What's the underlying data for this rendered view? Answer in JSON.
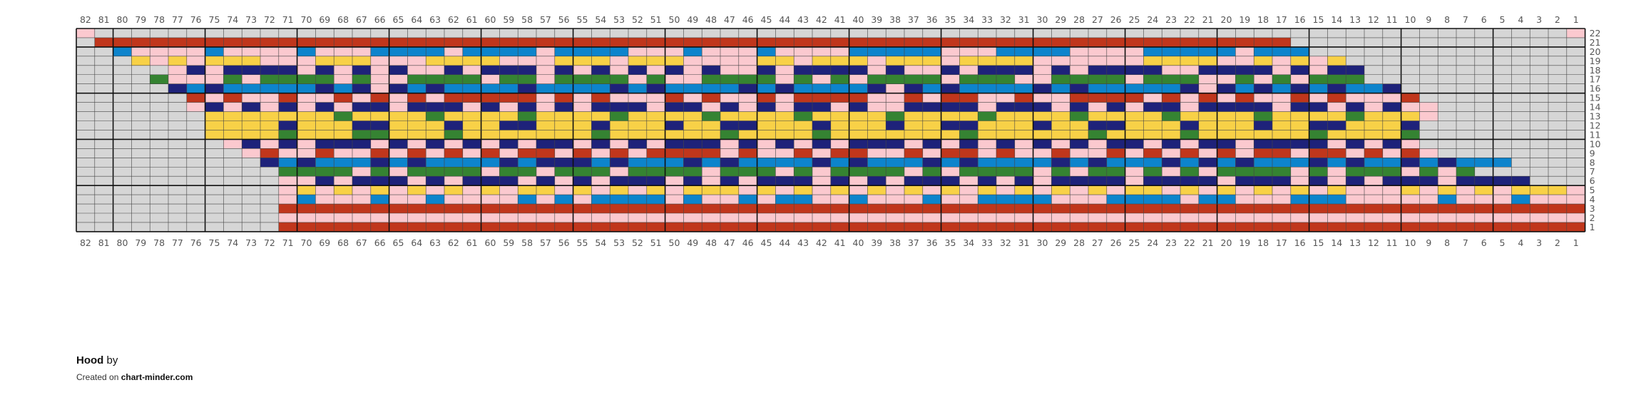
{
  "chart": {
    "columns": 82,
    "rows": 22,
    "column_numbers_descending": true,
    "major_grid_every": 5,
    "colors": {
      "empty": "#d6d6d6",
      "pink": "#fbc9cf",
      "red": "#c0361c",
      "navy": "#1e227a",
      "yellow": "#f8d147",
      "blue": "#0d84cc",
      "green": "#358332",
      "grid": "#444444",
      "major_grid": "#111111"
    },
    "legend_codes": {
      "N": "empty",
      "P": "pink",
      "R": "red",
      "D": "navy",
      "Y": "yellow",
      "B": "blue",
      "G": "green"
    },
    "rows_top_to_bottom": [
      "PNNNNNNNNNNNNNNNNNNNNNNNNNNNNNNNNNNNNNNNNNNNNNNNNNNNNNNNNNNNNNNNNNNNNNNNNNNNNNNNNP",
      "NRRRRRRRRRRRRRRRRRRRRRRRRRRRRRRRRRRRRRRRRRRRRRRRRRRRRRRRRRRRRRRRRRNNNNNNNNNNNNNNNN",
      "NNBPPPPBPPPPBPPPBBBBPBBBBPBBBBPPPBPPPBPPPPBBBBBPPPBBBBPPPPBBBBBPBBBNNNNNNNNNNNNNNN",
      "NNNYPYPYYYPPPYYYPPPYYYYPPPYYYPYYYPPPPYYPYYYPYYYPYYYYPPPPPPYYYYPPYPYPYNNNNNNNNNNNNN",
      "NNNNNPDPDDDDPDPDPDPPDPDDDPDPDPDPDPDPPDPDDDDPDPPDPDDDPDPDDDDPPDDDDPDPDDNNNNNNNNNNNN",
      "NNNNGPPPGPGGGGPGPPGGGGPGGPGGGGPGPPGGGGPGPGPGGGGPGGGPPGGGGPGGGPPGPGPGGGNNNNNNNNNNNN",
      "NNNNNDBDBBBBBDBDPDBDBBBBDBBBBDBDBBBBDBDBBBBDPDBDBBBBDBDBBBBBDPDBDBDBDBBDNNNNNNNNNN",
      "NNNNNNRPRPPRPPRPRPRPRRRRRPRPRPPPRPRPPRPRRRRPPRPRRPPRPPRRRRPRPRPRPPRPRPPPRNNNNNNNNN",
      "NNNNNNPDPDPDPDPDDPDDDPDPDPDPDDDPDDPDPDPDDPDPPDDDDPDDDPDPDPDDPDDDDPDDPDPDPPNNNNNNNN",
      "NNNNNNNYYYYYYYGYYYYGYYYYGYYYYGYYYYGYYYYGYYYYGYYYYGYYYYGYYYYGYYYYGYYYYGYYYPNNNNNNNN",
      "NNNNNNNYYYYDYYYDDYYYDYYDDYYYDYYYDYYDDYYYDYYYDYYDDYYYDYYDDYYYDYYYDYYDDYYYDNNNNNNNNN",
      "NNNNNNNYYYYGYYYGGYYYGYYYYYYYGYYYYYYGYYYYGYYYYYYYGYYYYYYGYYYYGYYYYYYGYYYYGNNNNNNNNN",
      "NNNNNNNNPDPDPDDDPDPDPDPDPDDPDPDPDDDPDPDPDPDDDPDPDPDPDPDPDDPDPDDPDDDDPDPDPNNNNNNNNN",
      "NNNNNNNNNPRPPRPPRPRPRPRPRRPRPRPRRRRPRPPRPRRPPRPRRPRPPRPPRPRPRPRPRRPRRPRPRPNNNNNNNN",
      "NNNNNNNNNNDBDBBBDBDBBBBDBDDDBDBBBDBDBBBBDBDBBBDBDBBBBDBDBBBDBDBDBBBDBDBBDBDBBBNNNN",
      "NNNNNNNNNNNGGGGPGPGGGGPGGPGGGPGGGGPGGGPGPGGGGPGPGGGGPGPGGPGPGPGGGGPGPGGGPGPGNNNNNN",
      "NNNNNNNNNNNPPDPDDDPDPDDDPDPDPDDDPDPDPDDDPDPDPDDDPDPDPDDDDPDDDDPDDDPDPDPDDDPDDDDNNN",
      "NNNNNNNNNNNPYPYPYPYPYPYPYYPYPYPYPYYYPYPYPYPYPYPYPYPYPYPYPYYPYPYPYPYPYPPPYPYPYPYYYP",
      "NNNNNNNNNNNPBPPPBPPBPPPPBPBPBBBBPBPPBPBBPPBPPPBPPBBBBPPPBBBBPBBPPPBBBPPPPPBPPPBPPP",
      "NNNNNNNNNNNRRRRRRRRRRRRRRRRRRRRRRRRRRRRRRRRRRRRRRRRRRRRRRRRRRRRRRRRRRRRRRRRRRRRRRR",
      "NNNNNNNNNNNPPPPPPPPPPPPPPPPPPPPPPPPPPPPPPPPPPPPPPPPPPPPPPPPPPPPPPPPPPPPPPPPPPPPPPP",
      "NNNNNNNNNNNRRRRRRRRRRRRRRRRRRRRRRRRRRRRRRRRRRRRRRRRRRRRRRRRRRRRRRRRRRRRRRRRRRRRRRR"
    ]
  },
  "footer": {
    "title": "Hood",
    "by": " by",
    "created_on": "Created on ",
    "site": "chart-minder.com"
  }
}
